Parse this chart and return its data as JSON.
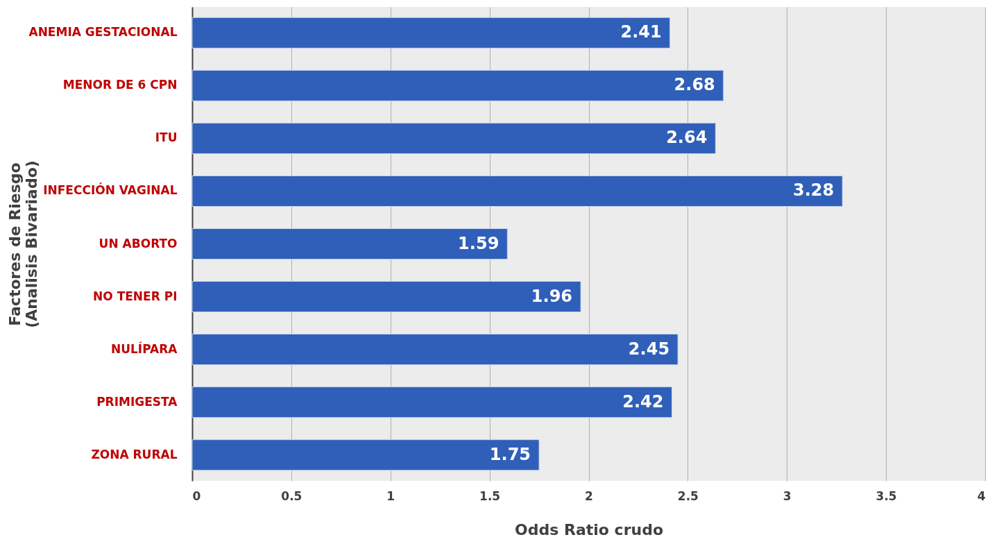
{
  "chart_data": {
    "type": "bar",
    "orientation": "horizontal",
    "categories": [
      "ANEMIA GESTACIONAL",
      "MENOR DE 6 CPN",
      "ITU",
      "INFECCIÓN VAGINAL",
      "UN ABORTO",
      "NO TENER PI",
      "NULÍPARA",
      "PRIMIGESTA",
      "ZONA RURAL"
    ],
    "values": [
      2.41,
      2.68,
      2.64,
      3.28,
      1.59,
      1.96,
      2.45,
      2.42,
      1.75
    ],
    "color": "#2f5fb8",
    "xlim": [
      0,
      4
    ],
    "xticks": [
      0,
      0.5,
      1,
      1.5,
      2,
      2.5,
      3,
      3.5,
      4
    ],
    "xlabel": "Odds Ratio crudo",
    "ylabel": "Factores de Riesgo\n(Analisis Bivariado)",
    "grid": "x",
    "data_labels": true
  }
}
